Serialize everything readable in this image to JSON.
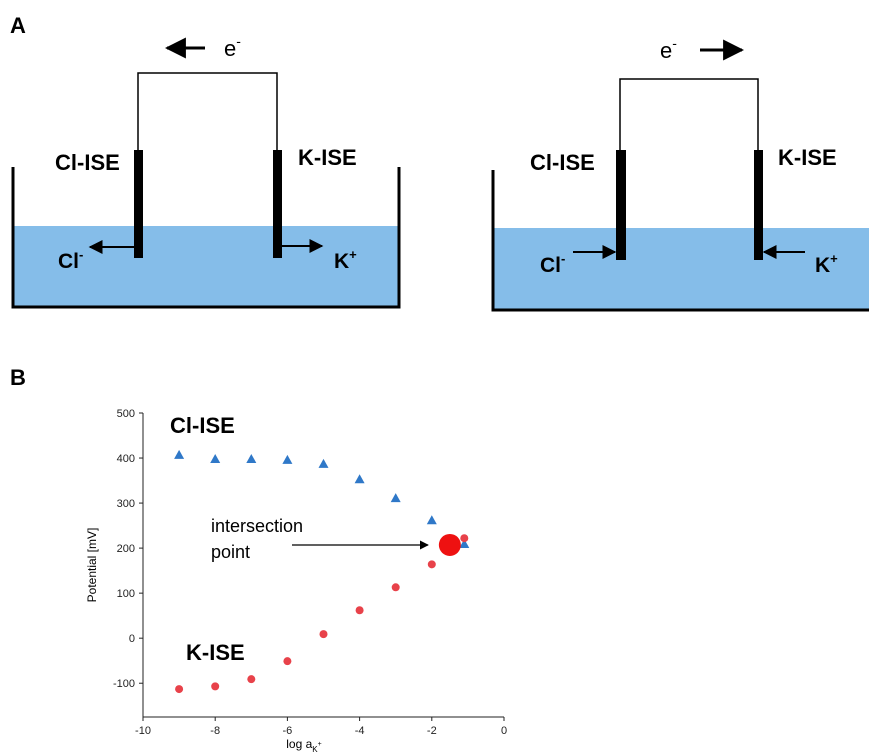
{
  "panels": {
    "a": "A",
    "b": "B"
  },
  "diagram": {
    "left": {
      "electron": {
        "base": "e",
        "sup": "-"
      },
      "cl_label": "Cl-ISE",
      "k_label": "K-ISE",
      "cl_ion": {
        "base": "Cl",
        "sup": "-"
      },
      "k_ion": {
        "base": "K",
        "sup": "+"
      }
    },
    "right": {
      "electron": {
        "base": "e",
        "sup": "-"
      },
      "cl_label": "Cl-ISE",
      "k_label": "K-ISE",
      "cl_ion": {
        "base": "Cl",
        "sup": "-"
      },
      "k_ion": {
        "base": "K",
        "sup": "+"
      }
    }
  },
  "chart_data": {
    "type": "scatter",
    "x": [
      -9,
      -8,
      -7,
      -6,
      -5,
      -4,
      -3,
      -2,
      -1.1
    ],
    "series": [
      {
        "name": "Cl-ISE",
        "color": "#2f78c8",
        "marker": "triangle",
        "values": [
          407,
          398,
          398,
          396,
          387,
          353,
          311,
          262,
          209
        ]
      },
      {
        "name": "K-ISE",
        "color": "#e8424a",
        "marker": "circle",
        "values": [
          -113,
          -107,
          -91,
          -51,
          9,
          62,
          113,
          164,
          222
        ]
      }
    ],
    "highlight": {
      "x": -1.5,
      "y": 207,
      "color": "#ee1111"
    },
    "annotation": [
      "intersection",
      "point"
    ],
    "y_label": "Potential [mV]",
    "x_label": {
      "base": "log a",
      "sub": "K",
      "sup": "+"
    },
    "xlim": [
      -10,
      0
    ],
    "xticks": [
      -10,
      -8,
      -6,
      -4,
      -2,
      0
    ],
    "ylim": [
      -175,
      500
    ],
    "yticks": [
      -100,
      0,
      100,
      200,
      300,
      400,
      500
    ]
  }
}
